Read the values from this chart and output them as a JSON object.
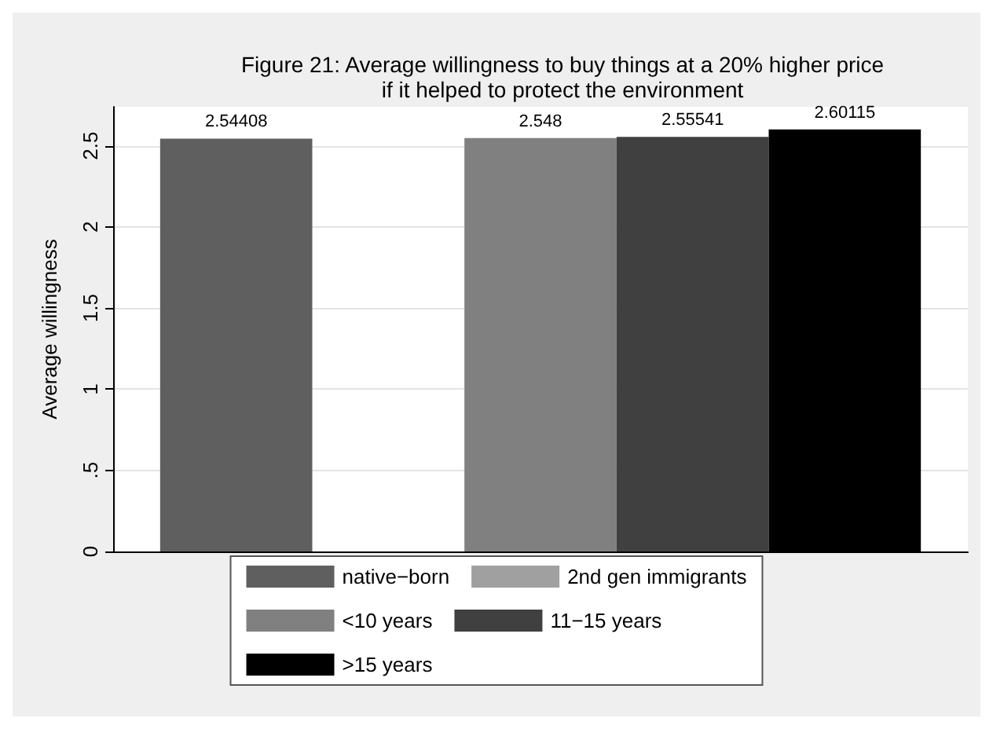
{
  "chart_data": {
    "type": "bar",
    "title": "Figure 21: Average willingness to buy things at a 20% higher price\nif it helped to protect the environment",
    "ylabel": "Average willingness",
    "categories": [
      null
    ],
    "series": [
      {
        "name": "native−born",
        "color": "#5f5f5f",
        "values": [
          2.54408
        ]
      },
      {
        "name": "2nd gen immigrants",
        "color": "#a0a0a0",
        "values": [
          null
        ]
      },
      {
        "name": "<10 years",
        "color": "#808080",
        "values": [
          2.548
        ]
      },
      {
        "name": "11−15 years",
        "color": "#404040",
        "values": [
          2.55541
        ]
      },
      {
        "name": ">15 years",
        "color": "#000000",
        "values": [
          2.60115
        ]
      }
    ],
    "ylim": [
      0,
      2.74
    ],
    "yticks": [
      0,
      {
        "value": 0.5,
        "label": ".5"
      },
      1,
      {
        "value": 1.5,
        "label": "1.5"
      },
      2,
      {
        "value": 2.5,
        "label": "2.5"
      }
    ],
    "grid": "y",
    "legend": "bottom",
    "data_labels": true,
    "tick_labels": "y"
  }
}
